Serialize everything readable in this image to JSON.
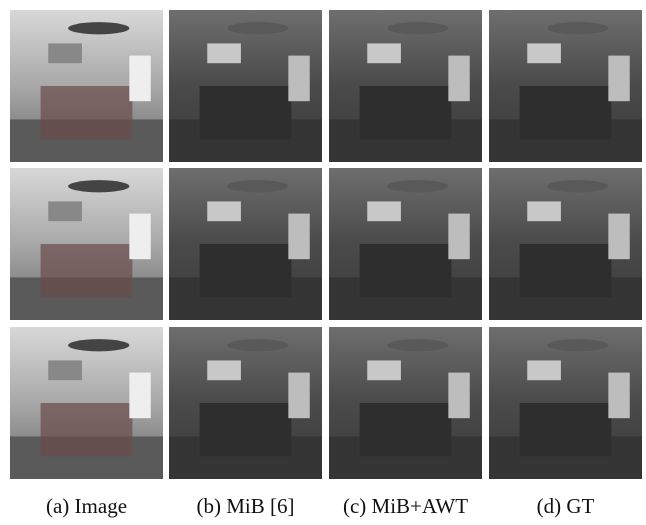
{
  "captions": [
    "(a) Image",
    "(b) MiB [6]",
    "(c) MiB+AWT",
    "(d) GT"
  ]
}
